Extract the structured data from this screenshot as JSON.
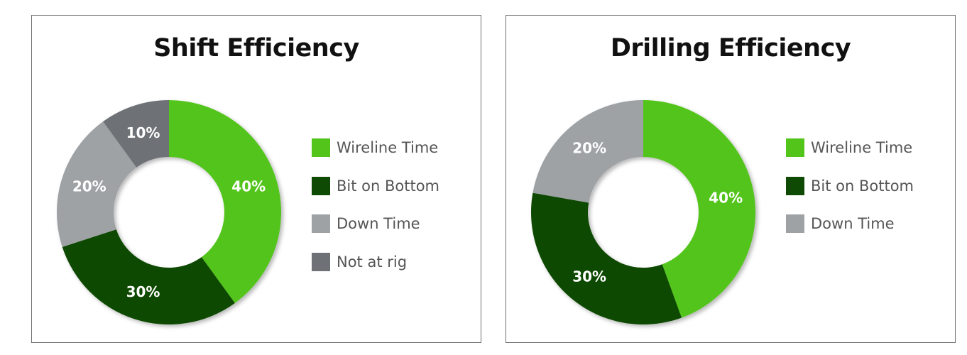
{
  "chart_data": [
    {
      "type": "pie",
      "title": "Shift Efficiency",
      "categories": [
        "Wireline Time",
        "Bit on Bottom",
        "Down Time",
        "Not at rig"
      ],
      "values": [
        40,
        30,
        20,
        10
      ],
      "labels": [
        "40%",
        "30%",
        "20%",
        "10%"
      ],
      "colors": [
        "#52c41a",
        "#0f4a05",
        "#9ea2a5",
        "#6e7175"
      ],
      "donut": true,
      "legend": "right"
    },
    {
      "type": "pie",
      "title": "Drilling Efficiency",
      "categories": [
        "Wireline Time",
        "Bit on Bottom",
        "Down Time"
      ],
      "values": [
        40,
        30,
        20
      ],
      "labels": [
        "40%",
        "30%",
        "20%"
      ],
      "colors": [
        "#52c41a",
        "#0f4a05",
        "#9ea2a5"
      ],
      "donut": true,
      "legend": "right"
    }
  ]
}
